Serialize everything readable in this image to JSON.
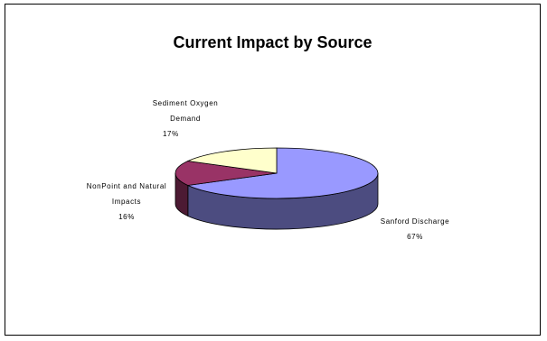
{
  "chart_data": {
    "type": "pie",
    "title": "Current Impact by Source",
    "slices": [
      {
        "name_lines": [
          "Sanford Discharge"
        ],
        "value": 67,
        "percent_label": "67%",
        "color": "#9999ff",
        "side_color": "#4c4c80"
      },
      {
        "name_lines": [
          "NonPoint and Natural",
          "Impacts"
        ],
        "value": 16,
        "percent_label": "16%",
        "color": "#993366",
        "side_color": "#4c1a33"
      },
      {
        "name_lines": [
          "Sediment Oxygen",
          "Demand"
        ],
        "value": 17,
        "percent_label": "17%",
        "color": "#ffffcc",
        "side_color": "#80806a"
      }
    ],
    "legend": "none",
    "view": "3d"
  }
}
